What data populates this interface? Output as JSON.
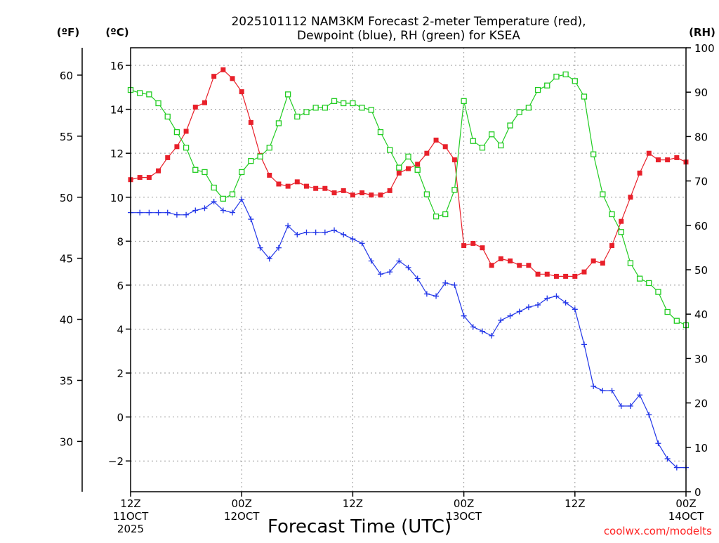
{
  "chart_data": {
    "type": "line",
    "title": "2025101112 NAM3KM Forecast 2-meter Temperature (red),",
    "subtitle": "Dewpoint (blue), RH (green) for KSEA",
    "xlabel": "Forecast Time (UTC)",
    "credit": "coolwx.com/modelts",
    "x_hours": {
      "range": [
        0,
        60
      ],
      "step": 1
    },
    "x_ticks": [
      {
        "hour": 0,
        "lines": [
          "12Z",
          "11OCT",
          "2025"
        ]
      },
      {
        "hour": 12,
        "lines": [
          "00Z",
          "12OCT"
        ]
      },
      {
        "hour": 24,
        "lines": [
          "12Z"
        ]
      },
      {
        "hour": 36,
        "lines": [
          "00Z",
          "13OCT"
        ]
      },
      {
        "hour": 48,
        "lines": [
          "12Z"
        ]
      },
      {
        "hour": 60,
        "lines": [
          "00Z",
          "14OCT"
        ]
      }
    ],
    "axes": {
      "left_f": {
        "unit": "(ºF)",
        "ticks": [
          30,
          35,
          40,
          45,
          50,
          55,
          60
        ]
      },
      "left_c": {
        "unit": "(ºC)",
        "range": [
          -3.4,
          16.8
        ],
        "ticks": [
          -2,
          0,
          2,
          4,
          6,
          8,
          10,
          12,
          14,
          16
        ]
      },
      "right_rh": {
        "unit": "(RH)",
        "range": [
          0,
          100
        ],
        "ticks": [
          0,
          10,
          20,
          30,
          40,
          50,
          60,
          70,
          80,
          90,
          100
        ]
      }
    },
    "grid": true,
    "series": [
      {
        "name": "2-meter Temperature",
        "unit": "C",
        "axis": "left_c",
        "color": "#e8202a",
        "marker": "filled-square",
        "values": [
          10.8,
          10.9,
          10.9,
          11.2,
          11.8,
          12.3,
          13.0,
          14.1,
          14.3,
          15.5,
          15.8,
          15.4,
          14.8,
          13.4,
          11.9,
          11.0,
          10.6,
          10.5,
          10.7,
          10.5,
          10.4,
          10.4,
          10.2,
          10.3,
          10.1,
          10.2,
          10.1,
          10.1,
          10.3,
          11.1,
          11.3,
          11.5,
          12.0,
          12.6,
          12.3,
          11.7,
          7.8,
          7.9,
          7.7,
          6.9,
          7.2,
          7.1,
          6.9,
          6.9,
          6.5,
          6.5,
          6.4,
          6.4,
          6.4,
          6.6,
          7.1,
          7.0,
          7.8,
          8.9,
          10.0,
          11.1,
          12.0,
          11.7,
          11.7,
          11.8,
          11.6
        ]
      },
      {
        "name": "Dewpoint",
        "unit": "C",
        "axis": "left_c",
        "color": "#2236e8",
        "marker": "plus",
        "values": [
          9.3,
          9.3,
          9.3,
          9.3,
          9.3,
          9.2,
          9.2,
          9.4,
          9.5,
          9.8,
          9.4,
          9.3,
          9.9,
          9.0,
          7.7,
          7.2,
          7.7,
          8.7,
          8.3,
          8.4,
          8.4,
          8.4,
          8.5,
          8.3,
          8.1,
          7.9,
          7.1,
          6.5,
          6.6,
          7.1,
          6.8,
          6.3,
          5.6,
          5.5,
          6.1,
          6.0,
          4.6,
          4.1,
          3.9,
          3.7,
          4.4,
          4.6,
          4.8,
          5.0,
          5.1,
          5.4,
          5.5,
          5.2,
          4.9,
          3.3,
          1.4,
          1.2,
          1.2,
          0.5,
          0.5,
          1.0,
          0.1,
          -1.2,
          -1.9,
          -2.3,
          -2.3
        ]
      },
      {
        "name": "RH",
        "unit": "%",
        "axis": "right_rh",
        "color": "#22cc22",
        "marker": "open-square",
        "values": [
          90.5,
          89.8,
          89.5,
          87.5,
          84.5,
          81.0,
          77.5,
          72.5,
          72.0,
          68.5,
          66.0,
          67.0,
          72.0,
          74.5,
          75.5,
          77.5,
          83.0,
          89.5,
          84.5,
          85.5,
          86.5,
          86.5,
          88.0,
          87.5,
          87.5,
          86.5,
          86.0,
          81.0,
          77.0,
          73.0,
          75.5,
          72.5,
          67.0,
          62.0,
          62.5,
          68.0,
          88.0,
          79.0,
          77.5,
          80.5,
          78.0,
          82.5,
          85.5,
          86.5,
          90.5,
          91.5,
          93.5,
          94.0,
          92.5,
          89.0,
          76.0,
          67.0,
          62.5,
          58.5,
          51.5,
          48.0,
          47.0,
          45.0,
          40.5,
          38.5,
          37.5
        ]
      }
    ]
  }
}
